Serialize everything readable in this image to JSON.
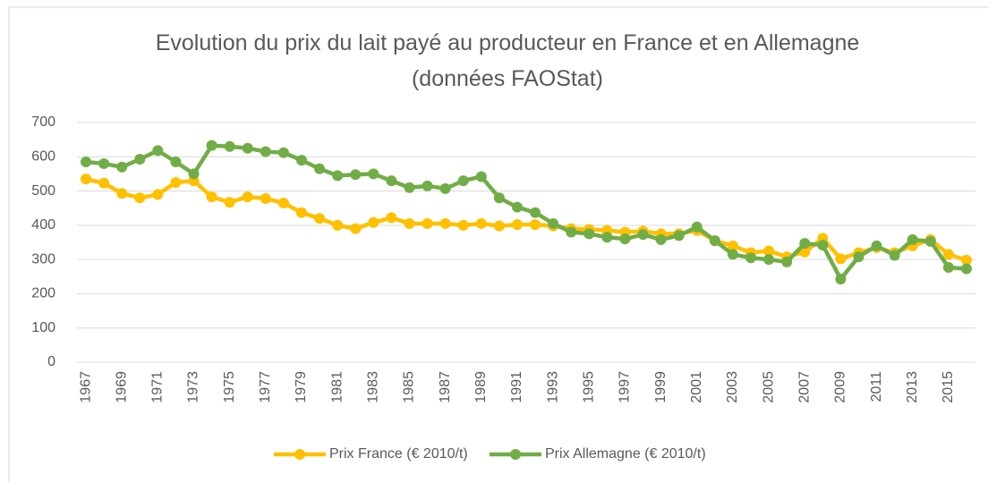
{
  "chart_data": {
    "type": "line",
    "title": "Evolution du prix du lait payé au producteur en France et en Allemagne (données FAOStat)",
    "categories": [
      "1967",
      null,
      "1969",
      null,
      "1971",
      null,
      "1973",
      null,
      "1975",
      null,
      "1977",
      null,
      "1979",
      null,
      "1981",
      null,
      "1983",
      null,
      "1985",
      null,
      "1987",
      null,
      "1989",
      null,
      "1991",
      null,
      "1993",
      null,
      "1995",
      null,
      "1997",
      null,
      "1999",
      null,
      "2001",
      null,
      "2003",
      null,
      "2005",
      null,
      "2007",
      null,
      "2009",
      null,
      "2011",
      null,
      "2013",
      null,
      "2015",
      null
    ],
    "series": [
      {
        "name": "Prix France (€ 2010/t)",
        "color": "#ffc000",
        "values": [
          535,
          523,
          493,
          480,
          490,
          525,
          530,
          483,
          467,
          483,
          478,
          465,
          437,
          420,
          400,
          390,
          408,
          422,
          405,
          405,
          405,
          400,
          405,
          398,
          402,
          402,
          398,
          390,
          388,
          385,
          380,
          383,
          375,
          375,
          385,
          355,
          340,
          320,
          325,
          308,
          322,
          362,
          302,
          320,
          335,
          320,
          340,
          358,
          315,
          298
        ]
      },
      {
        "name": "Prix Allemagne (€ 2010/t)",
        "color": "#70ad47",
        "values": [
          585,
          580,
          570,
          593,
          618,
          585,
          550,
          633,
          630,
          625,
          615,
          612,
          590,
          565,
          545,
          548,
          550,
          530,
          510,
          515,
          507,
          530,
          542,
          480,
          453,
          437,
          405,
          380,
          375,
          365,
          360,
          373,
          358,
          370,
          395,
          355,
          315,
          305,
          300,
          293,
          347,
          342,
          243,
          308,
          340,
          312,
          358,
          353,
          277,
          273
        ]
      }
    ],
    "ylim": [
      0,
      700
    ],
    "yticks": [
      0,
      100,
      200,
      300,
      400,
      500,
      600,
      700
    ],
    "grid": true,
    "legend": "bottom"
  }
}
